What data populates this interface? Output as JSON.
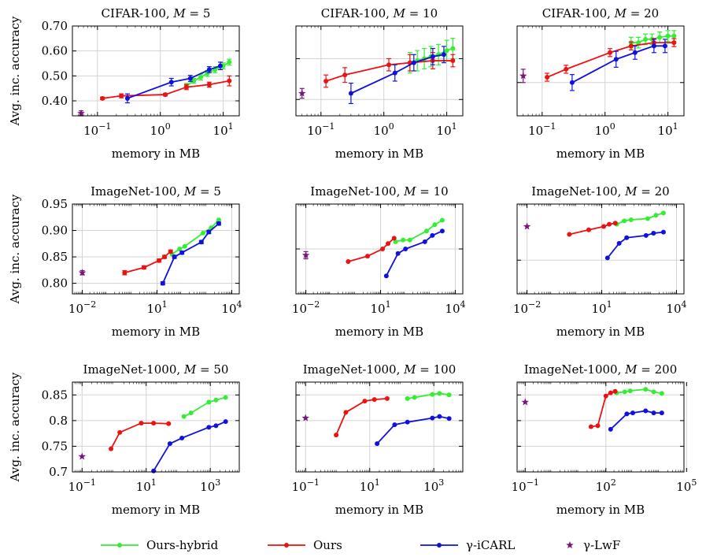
{
  "figure": {
    "ylabel": "Avg. inc. accuracy",
    "xlabel": "memory in MB"
  },
  "colors": {
    "ours_hybrid": "#33ee33",
    "ours": "#ee1111",
    "icarl": "#1111dd",
    "lwf": "#7a147a"
  },
  "legend": [
    {
      "name": "Ours-hybrid",
      "color": "#33ee33",
      "marker": "circle"
    },
    {
      "name": "Ours",
      "color": "#ee1111",
      "marker": "circle"
    },
    {
      "name": "γ-iCARL",
      "color": "#1111dd",
      "marker": "circle"
    },
    {
      "name": "γ-LwF",
      "color": "#7a147a",
      "marker": "star"
    }
  ],
  "chart_data": [
    {
      "type": "line",
      "title": "CIFAR-100, M = 5",
      "xlabel": "memory in MB",
      "ylabel": "Avg. inc. accuracy",
      "xscale": "log",
      "xlim": [
        0.04,
        18
      ],
      "ylim": [
        0.34,
        0.7
      ],
      "xticks": [
        0.1,
        1,
        10
      ],
      "xtick_labels": [
        "10^-1",
        "10^0",
        "10^1"
      ],
      "yticks": [
        0.4,
        0.5,
        0.6,
        0.7
      ],
      "ytick_labels": [
        "0.40",
        "0.50",
        "0.60",
        "0.70"
      ],
      "ytick_side": "left",
      "series": [
        {
          "name": "Ours-hybrid",
          "x": [
            2.6,
            3.4,
            4.4,
            5.6,
            7.4,
            10.0,
            12.5
          ],
          "y": [
            0.46,
            0.48,
            0.495,
            0.51,
            0.525,
            0.54,
            0.555
          ],
          "err": [
            0.01,
            0.01,
            0.012,
            0.012,
            0.012,
            0.012,
            0.012
          ]
        },
        {
          "name": "Ours",
          "x": [
            0.12,
            0.24,
            1.2,
            2.6,
            6.0,
            12.5
          ],
          "y": [
            0.41,
            0.42,
            0.425,
            0.455,
            0.465,
            0.48
          ],
          "err": [
            0.005,
            0.008,
            0.005,
            0.01,
            0.01,
            0.02
          ]
        },
        {
          "name": "γ-iCARL",
          "x": [
            0.3,
            1.5,
            3.0,
            6.0,
            9.0
          ],
          "y": [
            0.41,
            0.475,
            0.49,
            0.525,
            0.54
          ],
          "err": [
            0.018,
            0.015,
            0.012,
            0.012,
            0.015
          ]
        },
        {
          "name": "γ-LwF",
          "x": [
            0.055
          ],
          "y": [
            0.35
          ],
          "err": [
            0.01
          ]
        }
      ]
    },
    {
      "type": "line",
      "title": "CIFAR-100, M = 10",
      "xlabel": "memory in MB",
      "ylabel": "",
      "xscale": "log",
      "xlim": [
        0.04,
        18
      ],
      "ylim": [
        0.46,
        0.68
      ],
      "xticks": [
        0.1,
        1,
        10
      ],
      "xtick_labels": [
        "10^-1",
        "10^0",
        "10^1"
      ],
      "yticks": [
        0.5,
        0.6
      ],
      "ytick_labels": [],
      "ytick_side": "left",
      "series": [
        {
          "name": "Ours-hybrid",
          "x": [
            2.6,
            3.4,
            4.4,
            5.6,
            7.4,
            10.0,
            12.5
          ],
          "y": [
            0.59,
            0.595,
            0.6,
            0.605,
            0.61,
            0.62,
            0.625
          ],
          "err": [
            0.025,
            0.025,
            0.025,
            0.025,
            0.025,
            0.025,
            0.025
          ]
        },
        {
          "name": "Ours",
          "x": [
            0.12,
            0.24,
            1.2,
            2.6,
            6.0,
            12.5
          ],
          "y": [
            0.545,
            0.56,
            0.585,
            0.59,
            0.595,
            0.595
          ],
          "err": [
            0.015,
            0.018,
            0.015,
            0.02,
            0.02,
            0.015
          ]
        },
        {
          "name": "γ-iCARL",
          "x": [
            0.3,
            1.5,
            3.0,
            6.0,
            9.0
          ],
          "y": [
            0.515,
            0.565,
            0.59,
            0.605,
            0.61
          ],
          "err": [
            0.025,
            0.02,
            0.02,
            0.02,
            0.02
          ]
        },
        {
          "name": "γ-LwF",
          "x": [
            0.05
          ],
          "y": [
            0.515
          ],
          "err": [
            0.012
          ]
        }
      ]
    },
    {
      "type": "line",
      "title": "CIFAR-100, M = 20",
      "xlabel": "memory in MB",
      "ylabel": "",
      "xscale": "log",
      "xlim": [
        0.04,
        18
      ],
      "ylim": [
        0.55,
        0.685
      ],
      "xticks": [
        0.1,
        1,
        10
      ],
      "xtick_labels": [
        "10^-1",
        "10^0",
        "10^1"
      ],
      "yticks": [
        0.6
      ],
      "ytick_labels": [],
      "ytick_side": "left",
      "series": [
        {
          "name": "Ours-hybrid",
          "x": [
            2.6,
            3.4,
            4.4,
            5.6,
            7.4,
            10.0,
            12.5
          ],
          "y": [
            0.66,
            0.66,
            0.665,
            0.665,
            0.668,
            0.67,
            0.67
          ],
          "err": [
            0.008,
            0.008,
            0.008,
            0.008,
            0.008,
            0.008,
            0.008
          ]
        },
        {
          "name": "Ours",
          "x": [
            0.12,
            0.24,
            1.2,
            2.6,
            6.0,
            12.5
          ],
          "y": [
            0.608,
            0.62,
            0.645,
            0.655,
            0.66,
            0.66
          ],
          "err": [
            0.006,
            0.006,
            0.006,
            0.006,
            0.006,
            0.006
          ]
        },
        {
          "name": "γ-iCARL",
          "x": [
            0.3,
            1.5,
            3.0,
            6.0,
            9.0
          ],
          "y": [
            0.6,
            0.635,
            0.645,
            0.655,
            0.655
          ],
          "err": [
            0.012,
            0.012,
            0.01,
            0.01,
            0.01
          ]
        },
        {
          "name": "γ-LwF",
          "x": [
            0.05
          ],
          "y": [
            0.61
          ],
          "err": [
            0.01
          ]
        }
      ]
    },
    {
      "type": "line",
      "title": "ImageNet-100, M = 5",
      "xlabel": "memory in MB",
      "ylabel": "Avg. inc. accuracy",
      "xscale": "log",
      "xlim": [
        0.004,
        20000
      ],
      "ylim": [
        0.78,
        0.95
      ],
      "xticks": [
        0.01,
        10,
        10000
      ],
      "xtick_labels": [
        "10^-2",
        "10^1",
        "10^4"
      ],
      "yticks": [
        0.8,
        0.85,
        0.9,
        0.95
      ],
      "ytick_labels": [
        "0.80",
        "0.85",
        "0.90",
        "0.95"
      ],
      "ytick_side": "left",
      "series": [
        {
          "name": "Ours-hybrid",
          "x": [
            40,
            80,
            130,
            700,
            1500,
            3000
          ],
          "y": [
            0.855,
            0.865,
            0.87,
            0.895,
            0.905,
            0.92
          ],
          "err": [
            0,
            0,
            0,
            0,
            0,
            0
          ]
        },
        {
          "name": "Ours",
          "x": [
            0.5,
            3,
            12,
            20,
            35
          ],
          "y": [
            0.82,
            0.83,
            0.843,
            0.85,
            0.86
          ],
          "err": [
            0.004,
            0.003,
            0.003,
            0.003,
            0.003
          ]
        },
        {
          "name": "γ-iCARL",
          "x": [
            17,
            50,
            100,
            600,
            1200,
            3000
          ],
          "y": [
            0.8,
            0.85,
            0.858,
            0.878,
            0.897,
            0.913
          ],
          "err": [
            0.003,
            0.003,
            0.003,
            0.003,
            0.003,
            0.003
          ]
        },
        {
          "name": "γ-LwF",
          "x": [
            0.01
          ],
          "y": [
            0.82
          ],
          "err": [
            0.004
          ]
        }
      ]
    },
    {
      "type": "line",
      "title": "ImageNet-100, M = 10",
      "xlabel": "memory in MB",
      "ylabel": "",
      "xscale": "log",
      "xlim": [
        0.004,
        20000
      ],
      "ylim": [
        0.85,
        0.95
      ],
      "xticks": [
        0.01,
        10,
        10000
      ],
      "xtick_labels": [
        "10^-2",
        "10^1",
        "10^4"
      ],
      "yticks": [
        0.9
      ],
      "ytick_labels": [],
      "ytick_side": "left",
      "series": [
        {
          "name": "Ours-hybrid",
          "x": [
            40,
            80,
            150,
            700,
            1500,
            3000
          ],
          "y": [
            0.908,
            0.91,
            0.91,
            0.92,
            0.927,
            0.932
          ],
          "err": [
            0,
            0,
            0,
            0,
            0,
            0
          ]
        },
        {
          "name": "Ours",
          "x": [
            0.5,
            3,
            12,
            20,
            35
          ],
          "y": [
            0.886,
            0.892,
            0.9,
            0.906,
            0.912
          ],
          "err": [
            0,
            0,
            0,
            0,
            0
          ]
        },
        {
          "name": "γ-iCARL",
          "x": [
            17,
            50,
            100,
            600,
            1200,
            3000
          ],
          "y": [
            0.87,
            0.895,
            0.9,
            0.908,
            0.915,
            0.92
          ],
          "err": [
            0,
            0,
            0,
            0,
            0,
            0
          ]
        },
        {
          "name": "γ-LwF",
          "x": [
            0.01
          ],
          "y": [
            0.893
          ],
          "err": [
            0.004
          ]
        }
      ]
    },
    {
      "type": "line",
      "title": "ImageNet-100, M = 20",
      "xlabel": "memory in MB",
      "ylabel": "",
      "xscale": "log",
      "xlim": [
        0.004,
        20000
      ],
      "ylim": [
        0.87,
        0.95
      ],
      "xticks": [
        0.01,
        10,
        10000
      ],
      "xtick_labels": [
        "10^-2",
        "10^1",
        "10^4"
      ],
      "yticks": [
        0.9
      ],
      "ytick_labels": [],
      "ytick_side": "left",
      "series": [
        {
          "name": "Ours-hybrid",
          "x": [
            40,
            80,
            150,
            700,
            1500,
            3000
          ],
          "y": [
            0.932,
            0.935,
            0.936,
            0.937,
            0.94,
            0.942
          ],
          "err": [
            0,
            0,
            0,
            0,
            0,
            0
          ]
        },
        {
          "name": "Ours",
          "x": [
            0.5,
            3,
            12,
            20,
            35
          ],
          "y": [
            0.923,
            0.927,
            0.93,
            0.932,
            0.933
          ],
          "err": [
            0,
            0,
            0,
            0,
            0
          ]
        },
        {
          "name": "γ-iCARL",
          "x": [
            17,
            50,
            100,
            600,
            1200,
            3000
          ],
          "y": [
            0.902,
            0.915,
            0.92,
            0.922,
            0.924,
            0.925
          ],
          "err": [
            0,
            0,
            0,
            0,
            0,
            0
          ]
        },
        {
          "name": "γ-LwF",
          "x": [
            0.01
          ],
          "y": [
            0.93
          ],
          "err": [
            0
          ]
        }
      ]
    },
    {
      "type": "line",
      "title": "ImageNet-1000, M = 50",
      "xlabel": "memory in MB",
      "ylabel": "Avg. inc. accuracy",
      "xscale": "log",
      "xlim": [
        0.05,
        8000
      ],
      "ylim": [
        0.7,
        0.875
      ],
      "xticks": [
        0.1,
        10,
        1000
      ],
      "xtick_labels": [
        "10^-1",
        "10^1",
        "10^3"
      ],
      "yticks": [
        0.7,
        0.75,
        0.8,
        0.85
      ],
      "ytick_labels": [
        "0.7",
        "0.75",
        "0.8",
        "0.85"
      ],
      "ytick_side": "left",
      "series": [
        {
          "name": "Ours-hybrid",
          "x": [
            150,
            250,
            900,
            1500,
            3000
          ],
          "y": [
            0.808,
            0.815,
            0.836,
            0.84,
            0.845
          ],
          "err": [
            0,
            0,
            0,
            0,
            0
          ]
        },
        {
          "name": "Ours",
          "x": [
            0.8,
            1.5,
            7,
            17,
            50
          ],
          "y": [
            0.745,
            0.777,
            0.795,
            0.795,
            0.794
          ],
          "err": [
            0,
            0,
            0,
            0,
            0
          ]
        },
        {
          "name": "γ-iCARL",
          "x": [
            17,
            55,
            130,
            900,
            1500,
            3000
          ],
          "y": [
            0.702,
            0.755,
            0.766,
            0.787,
            0.79,
            0.798
          ],
          "err": [
            0,
            0,
            0,
            0,
            0,
            0
          ]
        },
        {
          "name": "γ-LwF",
          "x": [
            0.1
          ],
          "y": [
            0.73
          ],
          "err": [
            0
          ]
        }
      ]
    },
    {
      "type": "line",
      "title": "ImageNet-1000, M = 100",
      "xlabel": "memory in MB",
      "ylabel": "",
      "xscale": "log",
      "xlim": [
        0.05,
        8000
      ],
      "ylim": [
        0.7,
        0.875
      ],
      "xticks": [
        0.1,
        10,
        1000
      ],
      "xtick_labels": [
        "10^-1",
        "10^1",
        "10^3"
      ],
      "yticks": [
        0.75,
        0.8,
        0.85
      ],
      "ytick_labels": [],
      "ytick_side": "left",
      "series": [
        {
          "name": "Ours-hybrid",
          "x": [
            150,
            250,
            900,
            1500,
            3000
          ],
          "y": [
            0.843,
            0.845,
            0.851,
            0.853,
            0.85
          ],
          "err": [
            0,
            0,
            0,
            0,
            0
          ]
        },
        {
          "name": "Ours",
          "x": [
            0.9,
            1.8,
            7,
            14,
            35
          ],
          "y": [
            0.772,
            0.816,
            0.838,
            0.841,
            0.843
          ],
          "err": [
            0,
            0,
            0,
            0,
            0
          ]
        },
        {
          "name": "γ-iCARL",
          "x": [
            17,
            60,
            150,
            900,
            1500,
            3000
          ],
          "y": [
            0.755,
            0.792,
            0.797,
            0.805,
            0.808,
            0.804
          ],
          "err": [
            0,
            0,
            0,
            0,
            0,
            0
          ]
        },
        {
          "name": "γ-LwF",
          "x": [
            0.1
          ],
          "y": [
            0.805
          ],
          "err": [
            0
          ]
        }
      ]
    },
    {
      "type": "line",
      "title": "ImageNet-1000, M = 200",
      "xlabel": "memory in MB",
      "ylabel": "",
      "xscale": "log",
      "xlim": [
        0.05,
        80000
      ],
      "ylim": [
        0.7,
        0.875
      ],
      "xticks": [
        0.1,
        100,
        100000
      ],
      "xtick_labels": [
        "10^-1",
        "10^2",
        "10^5"
      ],
      "yticks": [
        0.75,
        0.8,
        0.85
      ],
      "ytick_labels": [],
      "ytick_side": "left",
      "series": [
        {
          "name": "Ours-hybrid",
          "x": [
            250,
            500,
            800,
            3000,
            6000,
            12000
          ],
          "y": [
            0.854,
            0.856,
            0.858,
            0.861,
            0.856,
            0.853
          ],
          "err": [
            0,
            0,
            0,
            0,
            0,
            0
          ]
        },
        {
          "name": "Ours",
          "x": [
            28,
            50,
            100,
            150,
            220
          ],
          "y": [
            0.788,
            0.79,
            0.848,
            0.854,
            0.857
          ],
          "err": [
            0,
            0,
            0,
            0,
            0
          ]
        },
        {
          "name": "γ-iCARL",
          "x": [
            150,
            600,
            1000,
            3000,
            6000,
            12000
          ],
          "y": [
            0.783,
            0.813,
            0.815,
            0.819,
            0.815,
            0.815
          ],
          "err": [
            0,
            0,
            0,
            0,
            0,
            0
          ]
        },
        {
          "name": "γ-LwF",
          "x": [
            0.1
          ],
          "y": [
            0.836
          ],
          "err": [
            0
          ]
        }
      ]
    }
  ]
}
